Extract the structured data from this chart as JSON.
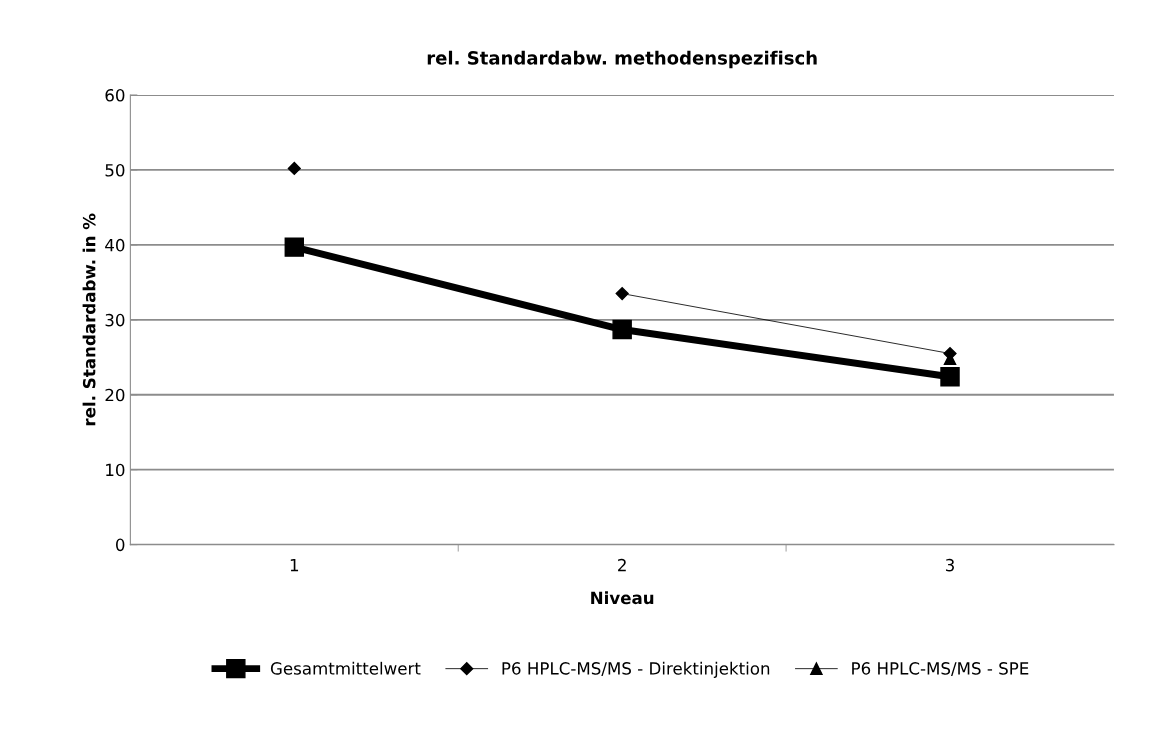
{
  "chart_data": {
    "type": "line",
    "title": "rel. Standardabw. methodenspezifisch",
    "xlabel": "Niveau",
    "ylabel": "rel. Standardabw. in %",
    "categories": [
      "1",
      "2",
      "3"
    ],
    "series": [
      {
        "name": "Gesamtmittelwert",
        "color": "#000000",
        "values": [
          39.7,
          28.7,
          22.4
        ],
        "marker": "square"
      },
      {
        "name": "P6 HPLC-MS/MS - Direktinjektion",
        "color": "#000000",
        "values": [
          null,
          33.5,
          25.5
        ],
        "marker": "diamond"
      },
      {
        "name": "P6 HPLC-MS/MS - SPE",
        "color": "#000000",
        "values": [
          null,
          null,
          24.8
        ],
        "marker": "triangle"
      },
      {
        "color": "#000000",
        "values": [
          50.2,
          null,
          null
        ],
        "marker": "diamond"
      }
    ],
    "ylim": [
      0,
      60
    ],
    "yticks": [
      0,
      10,
      20,
      30,
      40,
      50,
      60
    ],
    "grid": "y",
    "legend": "bottom"
  }
}
